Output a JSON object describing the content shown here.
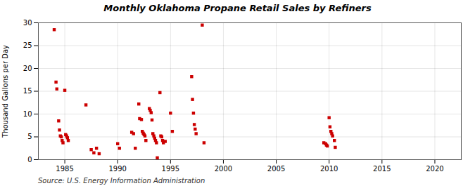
{
  "chart_data": {
    "type": "scatter",
    "title": "Monthly Oklahoma Propane Retail Sales by Refiners",
    "ylabel": "Thousand Gallons per Day",
    "annotations": [
      "Source: U.S. Energy Information Administration"
    ],
    "color": "#cc0000",
    "marker": "square",
    "grid": true,
    "xlim": [
      1982.5,
      2022.5
    ],
    "ylim": [
      0,
      30
    ],
    "xticks": [
      1985,
      1990,
      1995,
      2000,
      2005,
      2010,
      2015,
      2020
    ],
    "yticks": [
      0,
      5,
      10,
      15,
      20,
      25,
      30
    ],
    "x": [
      1984.0,
      1984.17,
      1984.25,
      1984.42,
      1984.5,
      1984.58,
      1984.67,
      1984.75,
      1984.83,
      1985.0,
      1985.08,
      1985.17,
      1985.25,
      1985.33,
      1987.0,
      1987.5,
      1987.75,
      1988.0,
      1988.25,
      1990.0,
      1990.17,
      1991.33,
      1991.5,
      1991.67,
      1992.0,
      1992.08,
      1992.25,
      1992.33,
      1992.42,
      1992.5,
      1992.58,
      1992.67,
      1993.0,
      1993.08,
      1993.17,
      1993.25,
      1993.33,
      1993.42,
      1993.5,
      1993.58,
      1993.67,
      1993.75,
      1994.0,
      1994.08,
      1994.17,
      1994.25,
      1994.33,
      1994.5,
      1995.0,
      1995.17,
      1997.0,
      1997.08,
      1997.17,
      1997.25,
      1997.33,
      1997.42,
      1998.0,
      1998.17,
      2009.5,
      2009.67,
      2009.75,
      2009.83,
      2010.0,
      2010.08,
      2010.17,
      2010.25,
      2010.33,
      2010.5,
      2010.58
    ],
    "values": [
      28.5,
      17.0,
      15.5,
      8.5,
      6.5,
      5.2,
      5.0,
      4.2,
      3.7,
      15.2,
      5.5,
      5.2,
      4.8,
      4.2,
      12.0,
      2.2,
      1.5,
      2.5,
      1.3,
      3.5,
      2.5,
      6.0,
      5.7,
      2.5,
      12.2,
      9.0,
      8.8,
      6.2,
      5.8,
      5.5,
      5.2,
      4.2,
      11.2,
      10.8,
      10.3,
      8.7,
      5.7,
      5.2,
      4.7,
      4.2,
      3.7,
      0.4,
      14.7,
      5.2,
      5.0,
      4.2,
      3.7,
      4.0,
      10.2,
      6.2,
      18.2,
      13.2,
      10.2,
      7.7,
      6.7,
      5.7,
      29.5,
      3.7,
      3.7,
      3.5,
      3.2,
      3.0,
      9.2,
      7.2,
      6.2,
      5.7,
      5.2,
      4.2,
      2.7
    ]
  }
}
